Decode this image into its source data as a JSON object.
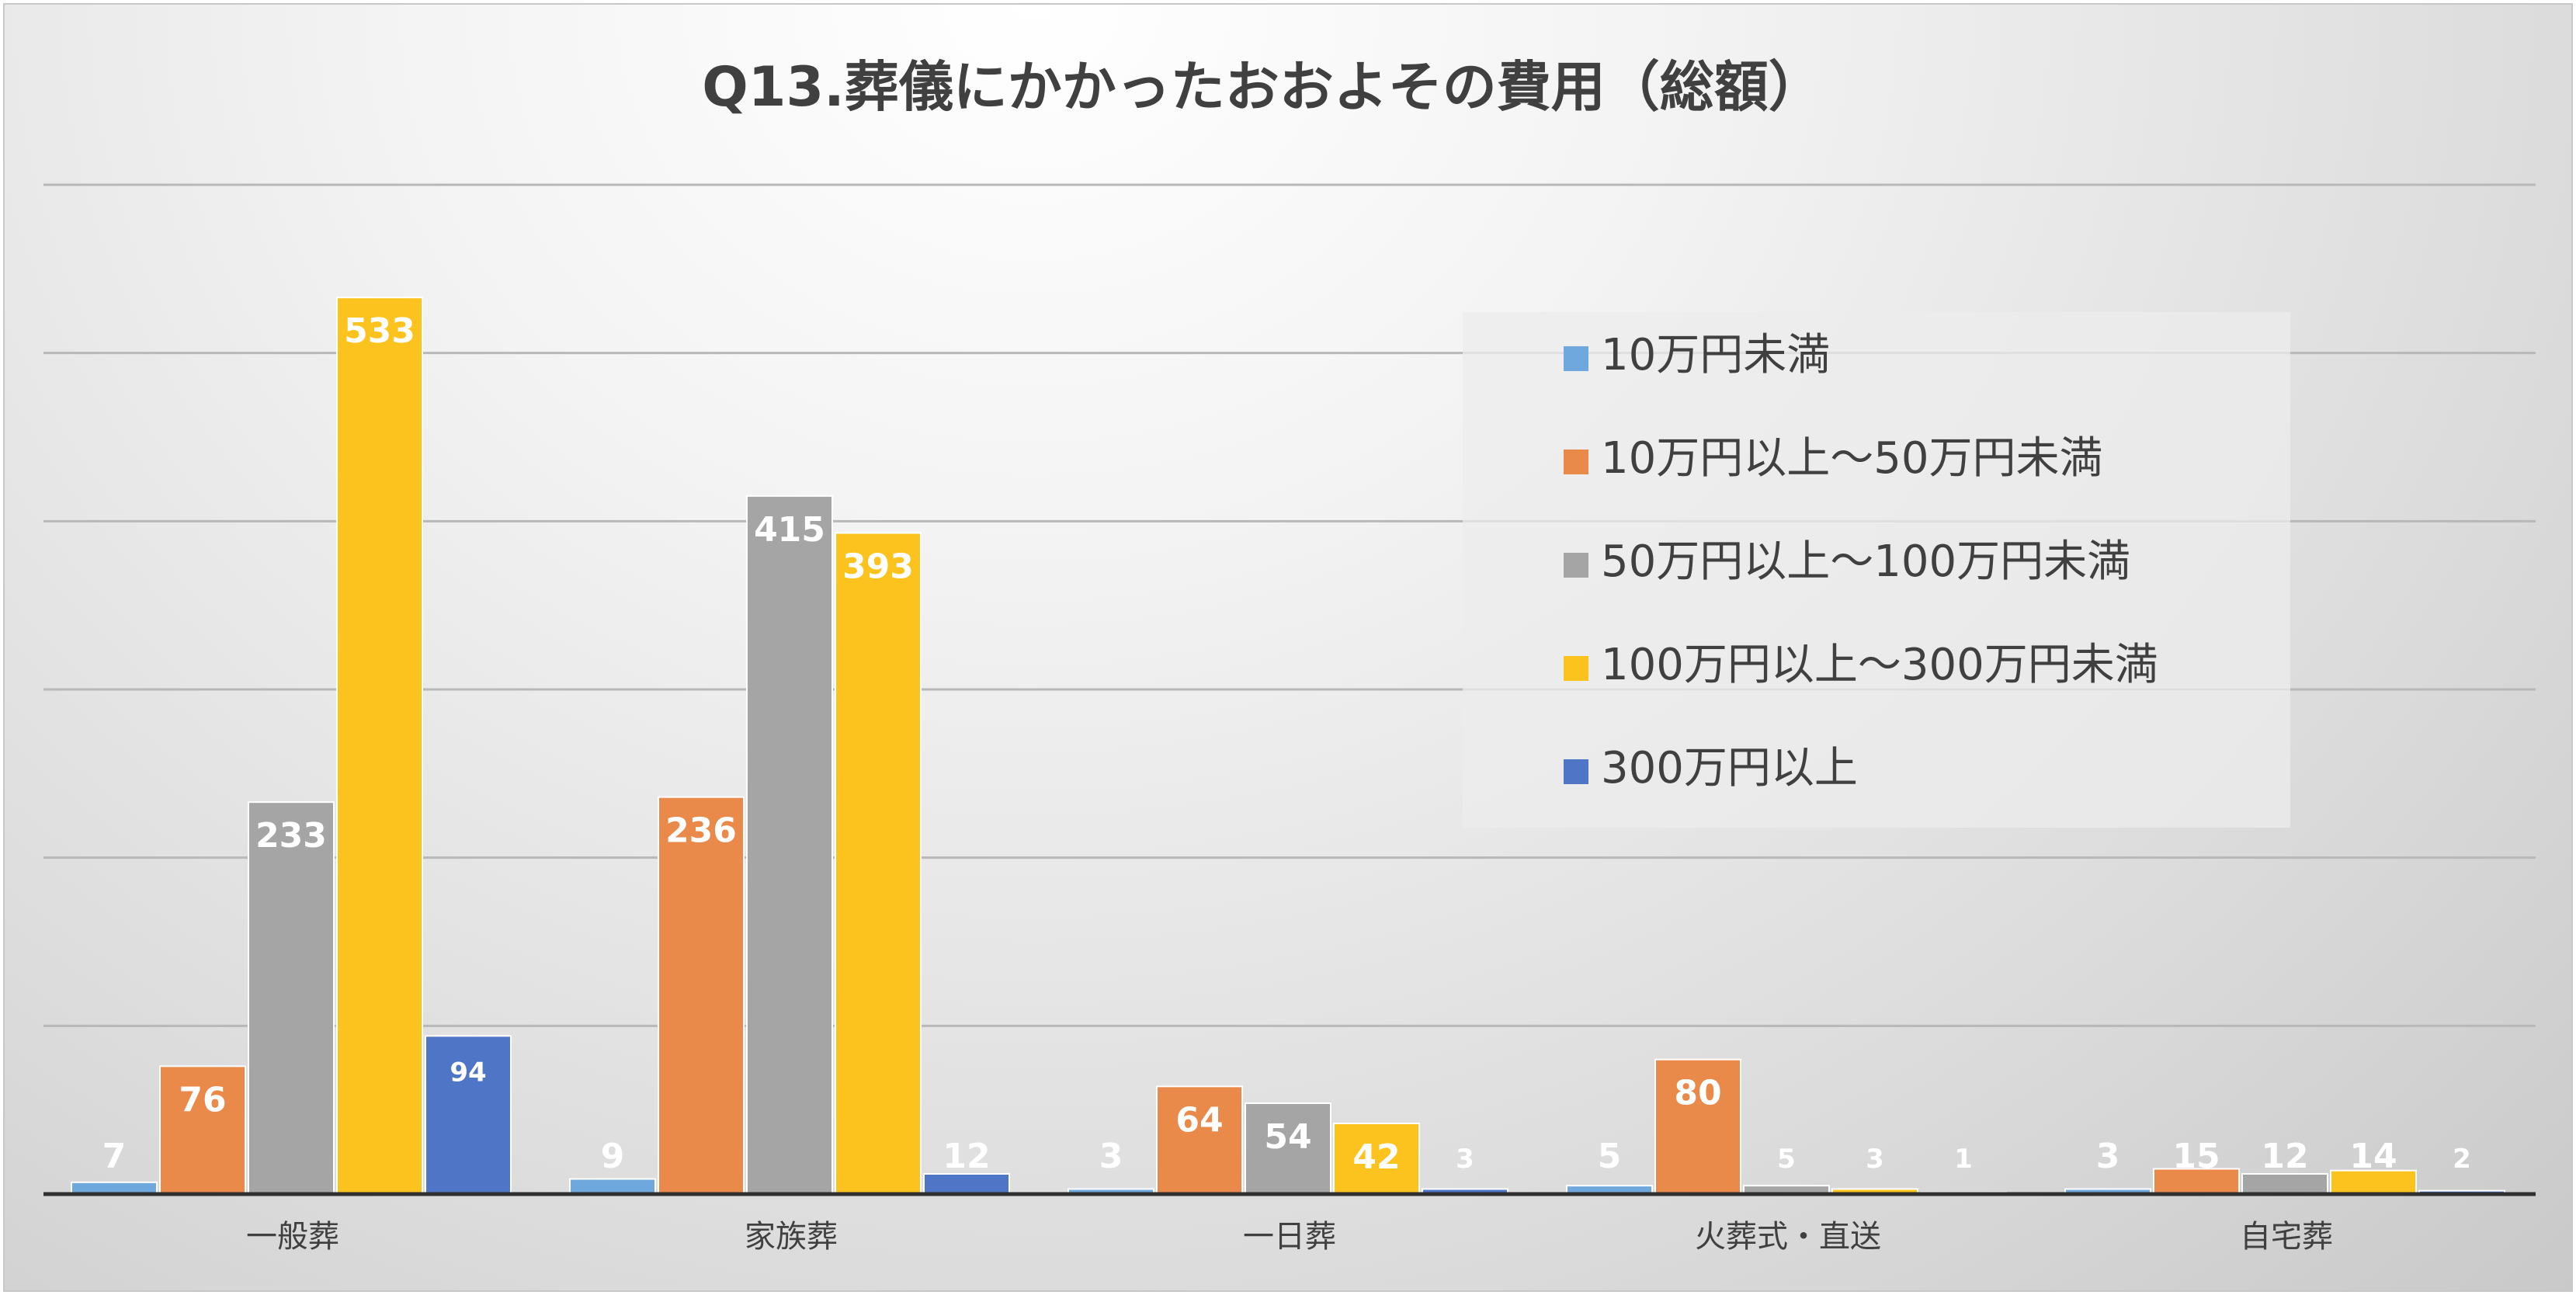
{
  "chart_data": {
    "type": "bar",
    "title": "Q13.葬儀にかかったおおよその費用（総額）",
    "categories": [
      "一般葬",
      "家族葬",
      "一日葬",
      "火葬式・直送",
      "自宅葬"
    ],
    "series": [
      {
        "name": "10万円未満",
        "color": "#6fa8dc",
        "values": [
          7,
          9,
          3,
          5,
          3
        ]
      },
      {
        "name": "10万円以上～50万円未満",
        "color": "#ea8a4a",
        "values": [
          76,
          236,
          64,
          80,
          15
        ]
      },
      {
        "name": "50万円以上～100万円未満",
        "color": "#a5a5a5",
        "values": [
          233,
          415,
          54,
          5,
          12
        ]
      },
      {
        "name": "100万円以上～300万円未満",
        "color": "#fcc21e",
        "values": [
          533,
          393,
          42,
          3,
          14
        ]
      },
      {
        "name": "300万円以上",
        "color": "#4f75c7",
        "values": [
          94,
          12,
          3,
          1,
          2
        ]
      }
    ],
    "ylim": [
      0,
      600
    ],
    "grid": true,
    "legend_position": "top-right",
    "data_labels": true
  }
}
